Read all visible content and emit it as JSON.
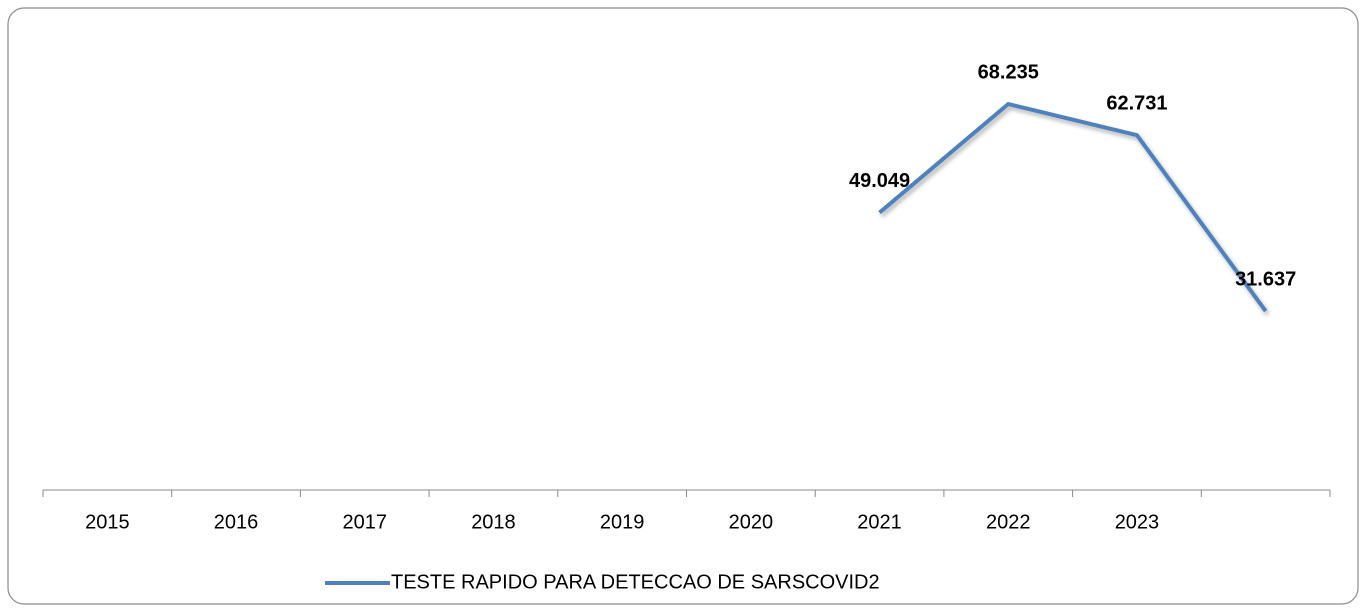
{
  "chart_data": {
    "type": "line",
    "categories": [
      "2015",
      "2016",
      "2017",
      "2018",
      "2019",
      "2020",
      "2021",
      "2022",
      "2023",
      null
    ],
    "series": [
      {
        "name": "TESTE RAPIDO PARA DETECCAO DE SARSCOVID2",
        "color": "#4f81bd",
        "values": [
          null,
          null,
          null,
          null,
          null,
          null,
          49049,
          68235,
          62731,
          31637
        ],
        "value_labels": [
          null,
          null,
          null,
          null,
          null,
          null,
          "49.049",
          "68.235",
          "62.731",
          "31.637"
        ]
      }
    ],
    "ylim": [
      0,
      80000
    ],
    "legend": "bottom"
  }
}
